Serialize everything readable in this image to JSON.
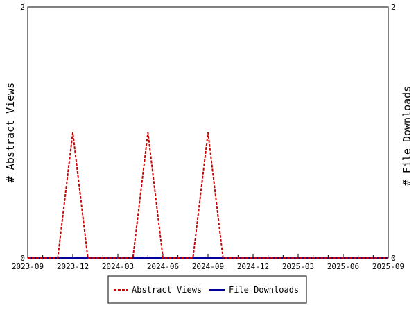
{
  "chart_data": {
    "type": "line",
    "x_start": "2023-09",
    "x_end": "2025-09",
    "x_tick_labels": [
      "2023-09",
      "2023-12",
      "2024-03",
      "2024-06",
      "2024-09",
      "2024-12",
      "2025-03",
      "2025-06",
      "2025-09"
    ],
    "x_minor_ticks_per_month": true,
    "y_left": {
      "label": "# Abstract Views",
      "ylim": [
        0,
        2
      ],
      "tick_labels": [
        "0",
        "2"
      ]
    },
    "y_right": {
      "label": "# File Downloads",
      "ylim": [
        0,
        2
      ],
      "tick_labels": [
        "0",
        "2"
      ]
    },
    "grid": false,
    "legend_position": "bottom-center",
    "series": [
      {
        "name": "Abstract Views",
        "axis": "left",
        "color": "#cc0000",
        "style": "dashed",
        "points": [
          {
            "x": "2023-09",
            "y": 0
          },
          {
            "x": "2023-10",
            "y": 0
          },
          {
            "x": "2023-11",
            "y": 0
          },
          {
            "x": "2023-12",
            "y": 1
          },
          {
            "x": "2024-01",
            "y": 0
          },
          {
            "x": "2024-02",
            "y": 0
          },
          {
            "x": "2024-03",
            "y": 0
          },
          {
            "x": "2024-04",
            "y": 0
          },
          {
            "x": "2024-05",
            "y": 1
          },
          {
            "x": "2024-06",
            "y": 0
          },
          {
            "x": "2024-07",
            "y": 0
          },
          {
            "x": "2024-08",
            "y": 0
          },
          {
            "x": "2024-09",
            "y": 1
          },
          {
            "x": "2024-10",
            "y": 0
          },
          {
            "x": "2024-11",
            "y": 0
          },
          {
            "x": "2024-12",
            "y": 0
          },
          {
            "x": "2025-01",
            "y": 0
          },
          {
            "x": "2025-02",
            "y": 0
          },
          {
            "x": "2025-03",
            "y": 0
          },
          {
            "x": "2025-04",
            "y": 0
          },
          {
            "x": "2025-05",
            "y": 0
          },
          {
            "x": "2025-06",
            "y": 0
          },
          {
            "x": "2025-07",
            "y": 0
          },
          {
            "x": "2025-08",
            "y": 0
          },
          {
            "x": "2025-09",
            "y": 0
          }
        ]
      },
      {
        "name": "File Downloads",
        "axis": "right",
        "color": "#000099",
        "style": "solid",
        "points": [
          {
            "x": "2023-09",
            "y": 0
          },
          {
            "x": "2025-09",
            "y": 0
          }
        ]
      }
    ]
  }
}
